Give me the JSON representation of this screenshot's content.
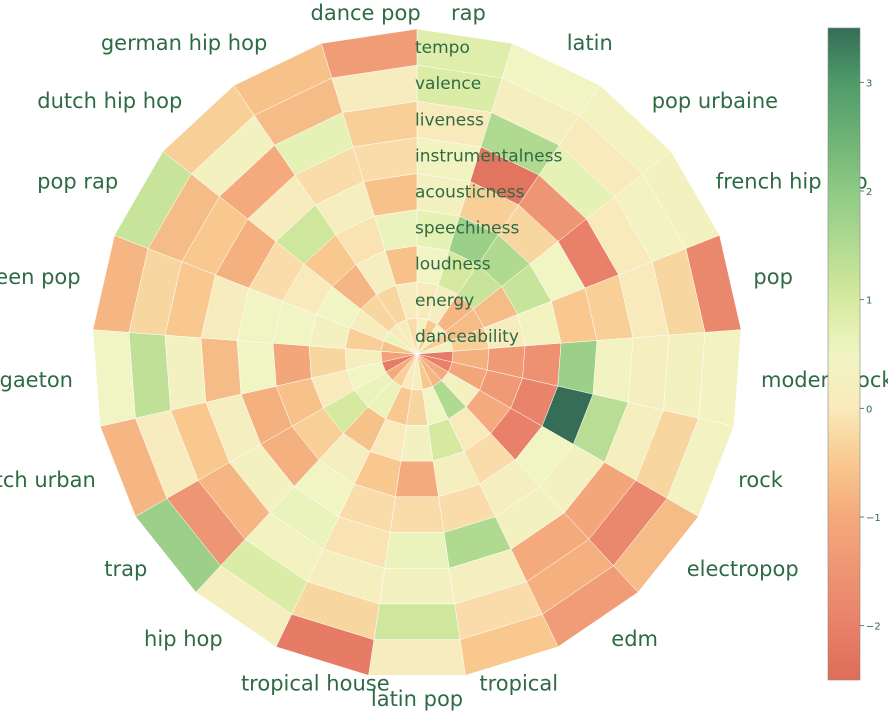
{
  "chart_data": {
    "type": "heatmap",
    "layout": "polar",
    "colormap": "RdYlGn",
    "color_range": [
      -2.5,
      3.5
    ],
    "colorbar": {
      "ticks": [
        -2,
        -1,
        0,
        1,
        2,
        3
      ],
      "tick_labels": [
        "−2",
        "−1",
        "0",
        "1",
        "2",
        "3"
      ]
    },
    "categories": [
      "rap",
      "latin",
      "pop urbaine",
      "french hip hop",
      "pop",
      "modern rock",
      "rock",
      "electropop",
      "edm",
      "tropical",
      "latin pop",
      "tropical house",
      "hip hop",
      "trap",
      "dutch urban",
      "reggaeton",
      "post-teen pop",
      "pop rap",
      "dutch hip hop",
      "german hip hop",
      "dance pop"
    ],
    "features": [
      "danceability",
      "energy",
      "loudness",
      "speechiness",
      "acousticness",
      "instrumentalness",
      "liveness",
      "valence",
      "tempo"
    ],
    "values": [
      [
        0.3,
        0.0,
        0.5,
        0.7,
        0.3,
        0.4,
        0.0,
        0.9,
        0.8
      ],
      [
        -0.5,
        0.2,
        1.0,
        1.8,
        -0.4,
        -2.3,
        1.5,
        0.2,
        0.5
      ],
      [
        0.4,
        -0.8,
        1.2,
        1.5,
        -0.3,
        -1.5,
        0.7,
        0.0,
        0.4
      ],
      [
        -0.4,
        -0.7,
        -0.7,
        1.2,
        0.5,
        -2.0,
        0.0,
        0.4,
        0.3
      ],
      [
        0.3,
        -0.4,
        0.1,
        0.4,
        -0.5,
        -0.4,
        0.0,
        -0.3,
        -1.8
      ],
      [
        -2.1,
        -0.9,
        -1.4,
        -1.6,
        1.8,
        0.4,
        0.2,
        0.3,
        0.4
      ],
      [
        -2.0,
        -1.1,
        -1.4,
        -1.9,
        3.5,
        1.4,
        0.2,
        -0.3,
        0.4
      ],
      [
        -1.0,
        0.3,
        -1.0,
        -2.0,
        0.5,
        0.3,
        -1.1,
        -1.8,
        -0.7
      ],
      [
        -0.8,
        1.5,
        0.0,
        -0.2,
        0.2,
        0.3,
        -1.0,
        -0.9,
        -1.3
      ],
      [
        -0.5,
        0.5,
        1.0,
        0.2,
        -0.2,
        1.5,
        0.2,
        -0.2,
        -0.5
      ],
      [
        0.2,
        -0.3,
        0.3,
        -1.0,
        -0.2,
        0.6,
        0.3,
        1.1,
        0.1
      ],
      [
        0.0,
        -0.5,
        0.0,
        -0.5,
        -0.2,
        -0.1,
        0.2,
        -0.3,
        -2.1
      ],
      [
        -0.4,
        0.6,
        -0.6,
        0.2,
        0.5,
        0.6,
        0.4,
        0.9,
        0.2
      ],
      [
        -1.0,
        0.6,
        1.0,
        -0.4,
        -0.9,
        0.3,
        -0.8,
        -1.5,
        1.8
      ],
      [
        -2.1,
        0.5,
        0.0,
        -0.6,
        -0.9,
        0.2,
        -0.5,
        0.1,
        -0.8
      ],
      [
        -1.2,
        0.2,
        -0.3,
        -1.1,
        0.5,
        -0.7,
        0.3,
        1.3,
        0.5
      ],
      [
        -0.6,
        -0.4,
        0.3,
        0.5,
        0.5,
        0.1,
        -0.5,
        -0.3,
        -0.8
      ],
      [
        0.6,
        0.1,
        0.5,
        0.0,
        -0.2,
        -0.9,
        -0.5,
        -0.7,
        1.2
      ],
      [
        0.0,
        -0.3,
        -0.8,
        -0.5,
        1.1,
        0.1,
        -1.0,
        0.3,
        -0.4
      ],
      [
        0.1,
        -0.3,
        0.2,
        -0.1,
        0.2,
        -0.2,
        0.7,
        -0.7,
        -0.6
      ],
      [
        -0.2,
        0.1,
        -0.6,
        0.6,
        -0.6,
        -0.2,
        -0.4,
        0.1,
        -1.3
      ]
    ]
  }
}
